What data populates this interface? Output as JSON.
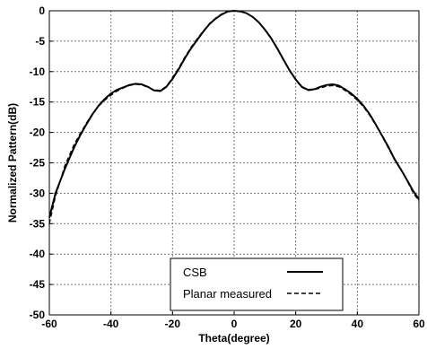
{
  "chart_data": {
    "type": "line",
    "xlabel": "Theta(degree)",
    "ylabel": "Normalized Pattern(dB)",
    "xlim": [
      -60,
      60
    ],
    "ylim": [
      -50,
      0
    ],
    "xticks": [
      -60,
      -40,
      -20,
      0,
      20,
      40,
      60
    ],
    "yticks": [
      0,
      -5,
      -10,
      -15,
      -20,
      -25,
      -30,
      -35,
      -40,
      -45,
      -50
    ],
    "grid": true,
    "legend_position": "bottom-center",
    "series": [
      {
        "name": "CSB",
        "style": "solid",
        "x": [
          -60,
          -58,
          -55,
          -52,
          -50,
          -48,
          -46,
          -44,
          -42,
          -40,
          -38,
          -36,
          -34,
          -32,
          -30,
          -28,
          -26,
          -24,
          -22,
          -20,
          -18,
          -16,
          -14,
          -12,
          -10,
          -8,
          -6,
          -4,
          -2,
          0,
          2,
          4,
          6,
          8,
          10,
          12,
          14,
          16,
          18,
          20,
          22,
          24,
          26,
          28,
          30,
          32,
          34,
          36,
          38,
          40,
          42,
          44,
          46,
          48,
          50,
          52,
          55,
          58,
          60
        ],
        "y": [
          -34,
          -30,
          -26,
          -22.5,
          -20.5,
          -18.7,
          -17,
          -15.6,
          -14.5,
          -13.6,
          -13,
          -12.6,
          -12.2,
          -12.0,
          -12.1,
          -12.5,
          -13.1,
          -13.2,
          -12.5,
          -11.2,
          -9.6,
          -7.8,
          -6.2,
          -4.8,
          -3.4,
          -2.2,
          -1.3,
          -0.6,
          -0.1,
          0,
          -0.1,
          -0.4,
          -1.0,
          -1.9,
          -3.1,
          -4.5,
          -6.2,
          -8,
          -9.8,
          -11.3,
          -12.5,
          -13.0,
          -12.9,
          -12.5,
          -12.2,
          -12.1,
          -12.3,
          -12.9,
          -13.6,
          -14.5,
          -15.6,
          -17,
          -18.7,
          -20.5,
          -22.3,
          -24.3,
          -26.8,
          -29.5,
          -31
        ]
      },
      {
        "name": "Planar measured",
        "style": "dashed",
        "x": [
          -60,
          -58,
          -55,
          -52,
          -50,
          -48,
          -46,
          -44,
          -42,
          -40,
          -38,
          -36,
          -34,
          -32,
          -30,
          -28,
          -26,
          -24,
          -22,
          -20,
          -18,
          -16,
          -14,
          -12,
          -10,
          -8,
          -6,
          -4,
          -2,
          0,
          2,
          4,
          6,
          8,
          10,
          12,
          14,
          16,
          18,
          20,
          22,
          24,
          26,
          28,
          30,
          32,
          34,
          36,
          38,
          40,
          42,
          44,
          46,
          48,
          50,
          52,
          55,
          58,
          60
        ],
        "y": [
          -35,
          -30.5,
          -25.5,
          -22,
          -20.2,
          -18.5,
          -16.9,
          -15.7,
          -14.7,
          -13.9,
          -13.2,
          -12.7,
          -12.3,
          -12.1,
          -12.2,
          -12.6,
          -13.0,
          -13.1,
          -12.4,
          -11.0,
          -9.4,
          -7.6,
          -6.0,
          -4.6,
          -3.3,
          -2.1,
          -1.2,
          -0.5,
          -0.1,
          0,
          -0.1,
          -0.4,
          -1.0,
          -1.9,
          -3.1,
          -4.6,
          -6.3,
          -8.1,
          -9.9,
          -11.4,
          -12.6,
          -13.1,
          -13.0,
          -12.7,
          -12.4,
          -12.3,
          -12.5,
          -13.1,
          -13.8,
          -14.7,
          -15.8,
          -17.2,
          -18.8,
          -20.6,
          -22.5,
          -24.4,
          -26.8,
          -29.8,
          -31.3
        ]
      }
    ]
  }
}
